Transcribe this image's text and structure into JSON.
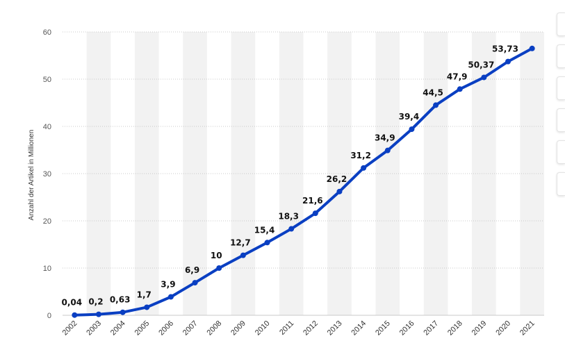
{
  "chart_data": {
    "type": "line",
    "title": "",
    "xlabel": "",
    "ylabel": "Anzahl der Artikel in Millionen",
    "ylim": [
      0,
      60
    ],
    "yticks": [
      0,
      10,
      20,
      30,
      40,
      50,
      60
    ],
    "grid": true,
    "categories": [
      "2002",
      "2003",
      "2004",
      "2005",
      "2006",
      "2007",
      "2008",
      "2009",
      "2010",
      "2011",
      "2012",
      "2013",
      "2014",
      "2015",
      "2016",
      "2017",
      "2018",
      "2019",
      "2020",
      "2021"
    ],
    "values": [
      0.04,
      0.2,
      0.63,
      1.7,
      3.9,
      6.9,
      10,
      12.7,
      15.4,
      18.3,
      21.6,
      26.2,
      31.2,
      34.9,
      39.4,
      44.5,
      47.9,
      50.37,
      53.73,
      56.5
    ],
    "data_labels": [
      "0,04",
      "0,2",
      "0,63",
      "1,7",
      "3,9",
      "6,9",
      "10",
      "12,7",
      "15,4",
      "18,3",
      "21,6",
      "26,2",
      "31,2",
      "34,9",
      "39,4",
      "44,5",
      "47,9",
      "50,37",
      "53,73",
      ""
    ],
    "series_color": "#0a3fc2",
    "band_color": "#f2f2f2"
  },
  "toolbar": {
    "buttons": [
      "bookmark-icon",
      "notification-icon",
      "settings-icon",
      "share-icon",
      "quote-icon",
      "info-icon"
    ]
  }
}
